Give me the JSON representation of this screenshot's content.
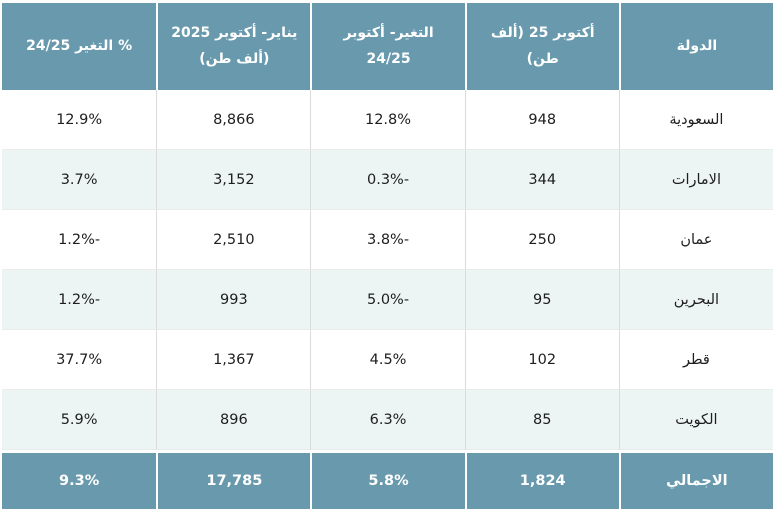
{
  "chart_data": {
    "type": "table",
    "direction": "rtl",
    "columns": [
      "الدولة",
      "أكتوبر 25 (ألف طن)",
      "التغير- أكتوبر 24/25",
      "يناير- أكتوبر 2025 (ألف طن)",
      "% التغير 24/25"
    ],
    "rows": [
      [
        "السعودية",
        "948",
        "12.8%",
        "8,866",
        "12.9%"
      ],
      [
        "الامارات",
        "344",
        "-0.3%",
        "3,152",
        "3.7%"
      ],
      [
        "عمان",
        "250",
        "-3.8%",
        "2,510",
        "-1.2%"
      ],
      [
        "البحرين",
        "95",
        "-5.0%",
        "993",
        "-1.2%"
      ],
      [
        "قطر",
        "102",
        "4.5%",
        "1,367",
        "37.7%"
      ],
      [
        "الكويت",
        "85",
        "6.3%",
        "896",
        "5.9%"
      ]
    ],
    "total_row": [
      "الاجمالي",
      "1,824",
      "5.8%",
      "17,785",
      "9.3%"
    ]
  },
  "colors": {
    "header_bg": "#6899ad",
    "header_text": "#ffffff",
    "row_bg": "#ffffff",
    "row_alt_bg": "#edf4f4",
    "text": "#1e1e1e",
    "grid_line": "#dadbdc"
  }
}
